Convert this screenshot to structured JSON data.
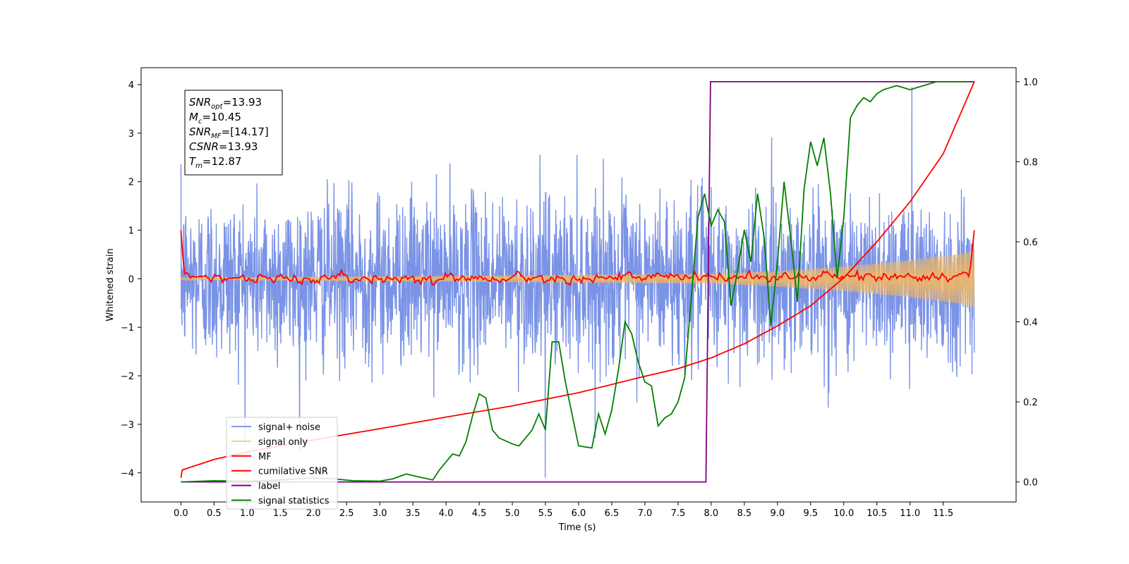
{
  "chart_data": {
    "type": "line",
    "xlabel": "Time (s)",
    "ylabel": "Whitened strain",
    "xlim": [
      -0.6,
      12.6
    ],
    "ylim": [
      -4.6,
      4.35
    ],
    "y2lim": [
      -0.05,
      1.035
    ],
    "x_ticks": [
      "0.0",
      "0.5",
      "1.0",
      "1.5",
      "2.0",
      "2.5",
      "3.0",
      "3.5",
      "4.0",
      "4.5",
      "5.0",
      "5.5",
      "6.0",
      "6.5",
      "7.0",
      "7.5",
      "8.0",
      "8.5",
      "9.0",
      "9.5",
      "10.0",
      "10.5",
      "11.0",
      "11.5"
    ],
    "y_ticks": [
      "4",
      "3",
      "2",
      "1",
      "0",
      "−1",
      "−2",
      "−3",
      "−4"
    ],
    "y2_ticks": [
      "1.0",
      "0.8",
      "0.6",
      "0.4",
      "0.2",
      "0.0"
    ],
    "info_box": [
      {
        "label": "SNR",
        "sub": "opt",
        "value": "=13.93"
      },
      {
        "label": "M",
        "sub": "c",
        "value": "=10.45"
      },
      {
        "label": "SNR",
        "sub": "MF",
        "value": "=[14.17]"
      },
      {
        "label": "CSNR",
        "sub": "",
        "value": "=13.93"
      },
      {
        "label": "T",
        "sub": "m",
        "value": "=12.87"
      }
    ],
    "legend_position": "lower-left",
    "series": [
      {
        "name": "signal+ noise",
        "color": "#6b87e3",
        "axis": "left",
        "kind": "noise",
        "amplitude_sigma": 0.85,
        "extrema": [
          -4.15,
          3.95
        ]
      },
      {
        "name": "signal only",
        "color": "#f5b95f",
        "axis": "left",
        "kind": "chirp",
        "envelope": {
          "x": [
            0,
            8,
            9,
            10,
            11,
            11.8,
            11.97
          ],
          "y": [
            0.02,
            0.1,
            0.16,
            0.25,
            0.38,
            0.52,
            0.6
          ]
        }
      },
      {
        "name": "MF",
        "color": "#ff0000",
        "axis": "left",
        "kind": "jitter",
        "x": [
          0,
          0.05,
          0.1,
          0.3,
          1,
          11.7,
          11.9,
          11.97
        ],
        "y": [
          1.0,
          0.1,
          0.1,
          0.05,
          0.0,
          0.05,
          0.1,
          1.0
        ]
      },
      {
        "name": "cumilative SNR",
        "color": "#ff0000",
        "axis": "right",
        "x": [
          0,
          0.02,
          0.5,
          1,
          2,
          3,
          4,
          5,
          6,
          7,
          7.5,
          8,
          8.5,
          9,
          9.5,
          10,
          10.5,
          11,
          11.5,
          11.97
        ],
        "y": [
          0.01,
          0.03,
          0.056,
          0.075,
          0.105,
          0.133,
          0.162,
          0.19,
          0.223,
          0.264,
          0.283,
          0.31,
          0.345,
          0.39,
          0.44,
          0.51,
          0.6,
          0.7,
          0.82,
          1.0
        ]
      },
      {
        "name": "label",
        "color": "#800080",
        "axis": "right",
        "x": [
          0,
          7.92,
          7.99,
          11.97
        ],
        "y": [
          0.0,
          0.0,
          1.0,
          1.0
        ]
      },
      {
        "name": "signal statistics",
        "color": "#008000",
        "axis": "right",
        "x": [
          0,
          0.5,
          1,
          1.5,
          2,
          2.3,
          2.6,
          3,
          3.2,
          3.4,
          3.6,
          3.8,
          3.9,
          4.0,
          4.1,
          4.2,
          4.3,
          4.4,
          4.5,
          4.6,
          4.7,
          4.8,
          5.0,
          5.1,
          5.2,
          5.3,
          5.4,
          5.5,
          5.6,
          5.7,
          5.8,
          6.0,
          6.2,
          6.3,
          6.4,
          6.5,
          6.6,
          6.7,
          6.8,
          6.9,
          7.0,
          7.1,
          7.2,
          7.3,
          7.4,
          7.5,
          7.6,
          7.8,
          7.9,
          8.0,
          8.1,
          8.2,
          8.3,
          8.4,
          8.5,
          8.6,
          8.7,
          8.8,
          8.9,
          9.0,
          9.1,
          9.2,
          9.3,
          9.4,
          9.5,
          9.6,
          9.7,
          9.8,
          9.9,
          10.0,
          10.1,
          10.2,
          10.3,
          10.4,
          10.5,
          10.6,
          10.8,
          11.0,
          11.2,
          11.4,
          11.6,
          11.9
        ],
        "y": [
          0.0,
          0.003,
          0.002,
          0.005,
          0.01,
          0.008,
          0.003,
          0.002,
          0.008,
          0.02,
          0.012,
          0.005,
          0.03,
          0.05,
          0.07,
          0.065,
          0.1,
          0.165,
          0.22,
          0.21,
          0.13,
          0.11,
          0.095,
          0.09,
          0.11,
          0.13,
          0.17,
          0.13,
          0.35,
          0.35,
          0.25,
          0.09,
          0.085,
          0.17,
          0.12,
          0.18,
          0.28,
          0.4,
          0.37,
          0.3,
          0.25,
          0.24,
          0.14,
          0.16,
          0.17,
          0.2,
          0.26,
          0.66,
          0.72,
          0.64,
          0.68,
          0.65,
          0.44,
          0.53,
          0.63,
          0.55,
          0.72,
          0.61,
          0.39,
          0.55,
          0.75,
          0.61,
          0.45,
          0.73,
          0.85,
          0.79,
          0.86,
          0.72,
          0.51,
          0.66,
          0.91,
          0.94,
          0.96,
          0.95,
          0.97,
          0.98,
          0.99,
          0.98,
          0.99,
          1.0,
          1.0,
          1.0
        ]
      }
    ]
  }
}
